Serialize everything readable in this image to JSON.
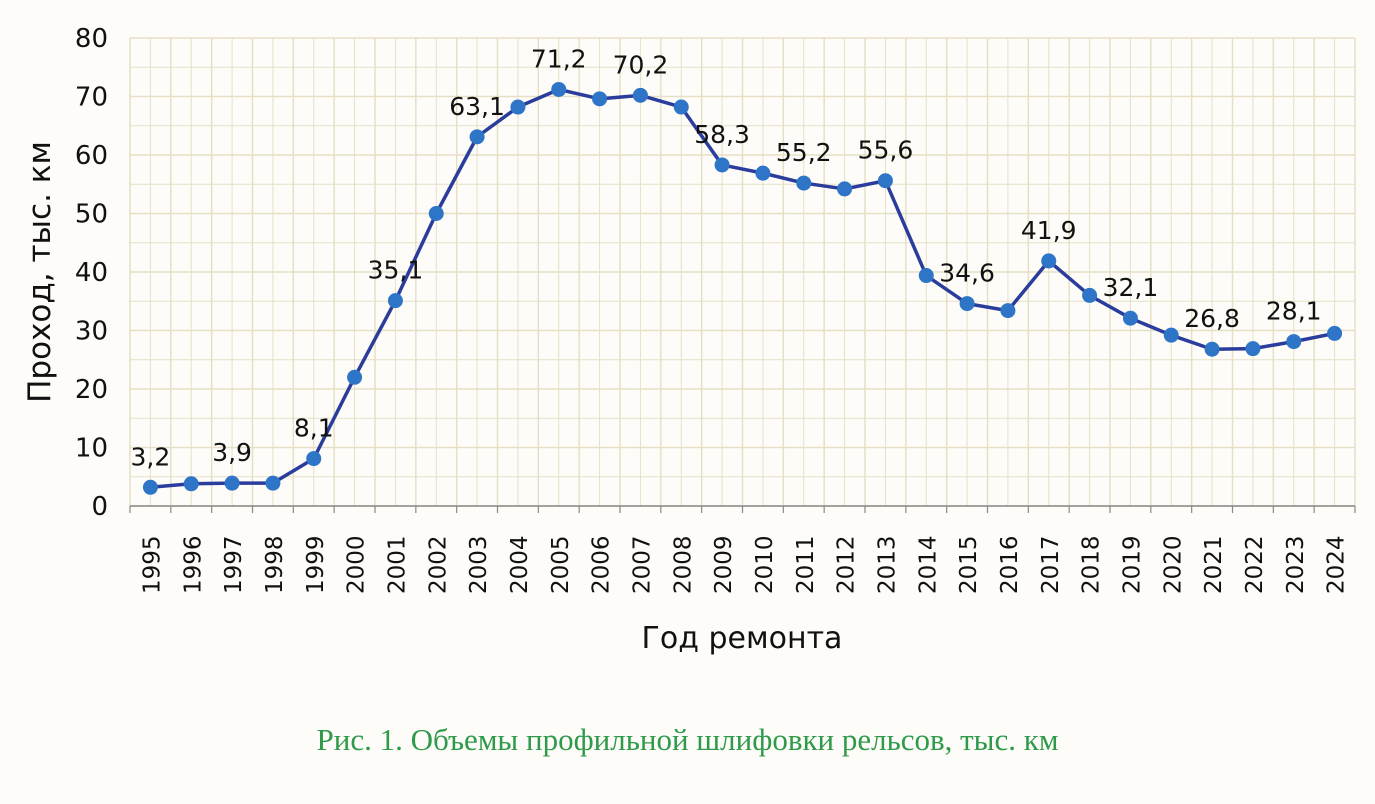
{
  "chart_data": {
    "type": "line",
    "title": "",
    "xlabel": "Год ремонта",
    "ylabel": "Проход,  тыс. км",
    "ylim": [
      0,
      80
    ],
    "yticks": [
      0,
      10,
      20,
      30,
      40,
      50,
      60,
      70,
      80
    ],
    "grid": true,
    "x": [
      "1995",
      "1996",
      "1997",
      "1998",
      "1999",
      "2000",
      "2001",
      "2002",
      "2003",
      "2004",
      "2005",
      "2006",
      "2007",
      "2008",
      "2009",
      "2010",
      "2011",
      "2012",
      "2013",
      "2014",
      "2015",
      "2016",
      "2017",
      "2018",
      "2019",
      "2020",
      "2021",
      "2022",
      "2023",
      "2024"
    ],
    "series": [
      {
        "name": "Проход",
        "values": [
          3.2,
          3.8,
          3.9,
          3.9,
          8.1,
          22.0,
          35.1,
          50.0,
          63.1,
          68.2,
          71.2,
          69.6,
          70.2,
          68.2,
          58.3,
          56.9,
          55.2,
          54.2,
          55.6,
          39.4,
          34.6,
          33.4,
          41.9,
          36.0,
          32.1,
          29.2,
          26.8,
          26.9,
          28.1,
          29.5
        ]
      }
    ],
    "data_labels": [
      {
        "x": "1995",
        "text": "3,2"
      },
      {
        "x": "1997",
        "text": "3,9"
      },
      {
        "x": "1999",
        "text": "8,1"
      },
      {
        "x": "2001",
        "text": "35,1"
      },
      {
        "x": "2003",
        "text": "63,1"
      },
      {
        "x": "2005",
        "text": "71,2"
      },
      {
        "x": "2007",
        "text": "70,2"
      },
      {
        "x": "2009",
        "text": "58,3"
      },
      {
        "x": "2011",
        "text": "55,2"
      },
      {
        "x": "2013",
        "text": "55,6"
      },
      {
        "x": "2015",
        "text": "34,6"
      },
      {
        "x": "2017",
        "text": "41,9"
      },
      {
        "x": "2019",
        "text": "32,1"
      },
      {
        "x": "2021",
        "text": "26,8"
      },
      {
        "x": "2023",
        "text": "28,1"
      }
    ],
    "colors": {
      "line": "#2b3d9c",
      "marker": "#2e75c8",
      "grid": "#e6dfc6"
    }
  },
  "caption": "Рис. 1. Объемы профильной шлифовки рельсов, тыс. км"
}
